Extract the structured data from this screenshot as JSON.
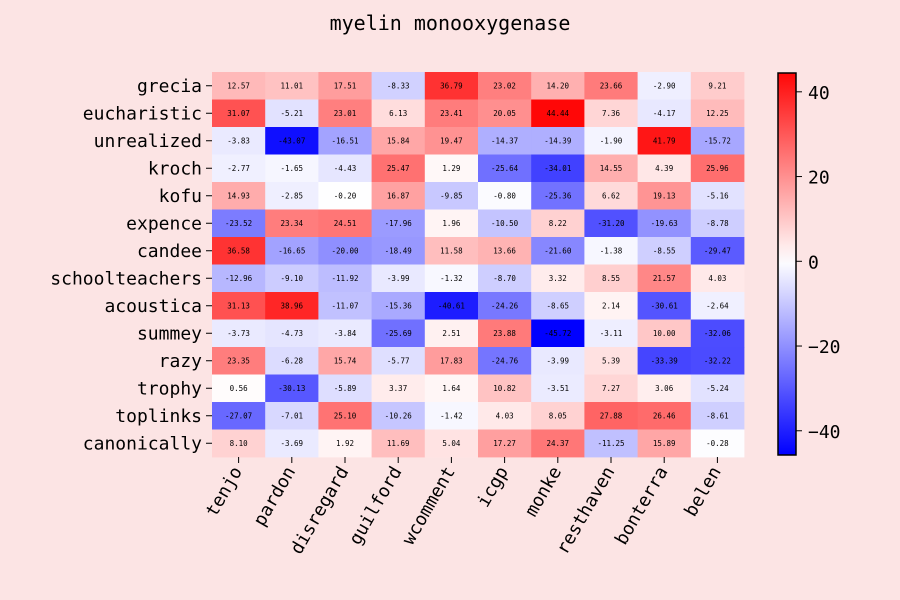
{
  "chart_data": {
    "type": "heatmap",
    "title": "myelin monooxygenase",
    "xlabel": "",
    "ylabel": "",
    "x_categories": [
      "tenjo",
      "pardon",
      "disregard",
      "guilford",
      "wcomment",
      "icgp",
      "monke",
      "resthaven",
      "bonterra",
      "belen"
    ],
    "y_categories": [
      "grecia",
      "eucharistic",
      "unrealized",
      "kroch",
      "kofu",
      "expence",
      "candee",
      "schoolteachers",
      "acoustica",
      "summey",
      "razy",
      "trophy",
      "toplinks",
      "canonically"
    ],
    "values": [
      [
        12.57,
        11.01,
        17.51,
        -8.33,
        36.79,
        23.02,
        14.2,
        23.66,
        -2.9,
        9.21
      ],
      [
        31.07,
        -5.21,
        23.01,
        6.13,
        23.41,
        20.05,
        44.44,
        7.36,
        -4.17,
        12.25
      ],
      [
        -3.83,
        -43.07,
        -16.51,
        15.84,
        19.47,
        -14.37,
        -14.39,
        -1.9,
        41.79,
        -15.72
      ],
      [
        -2.77,
        -1.65,
        -4.43,
        25.47,
        1.29,
        -25.64,
        -34.01,
        14.55,
        4.39,
        25.96
      ],
      [
        14.93,
        -2.85,
        -0.2,
        16.87,
        -9.85,
        -0.8,
        -25.36,
        6.62,
        19.13,
        -5.16
      ],
      [
        -23.52,
        23.34,
        24.51,
        -17.96,
        1.96,
        -10.5,
        8.22,
        -31.2,
        -19.63,
        -8.78
      ],
      [
        36.58,
        -16.65,
        -20.0,
        -18.49,
        11.58,
        13.66,
        -21.6,
        -1.38,
        -8.55,
        -29.47
      ],
      [
        -12.96,
        -9.1,
        -11.92,
        -3.99,
        -1.32,
        -8.7,
        3.32,
        8.55,
        21.57,
        4.03
      ],
      [
        31.13,
        38.96,
        -11.07,
        -15.36,
        -40.61,
        -24.26,
        -8.65,
        2.14,
        -30.61,
        -2.64
      ],
      [
        -3.73,
        -4.73,
        -3.84,
        -25.69,
        2.51,
        23.88,
        -45.72,
        -3.11,
        10.0,
        -32.06
      ],
      [
        23.35,
        -6.28,
        15.74,
        -5.77,
        17.83,
        -24.76,
        -3.99,
        5.39,
        -33.39,
        -32.22
      ],
      [
        0.56,
        -30.13,
        -5.89,
        3.37,
        1.64,
        10.82,
        -3.51,
        7.27,
        3.06,
        -5.24
      ],
      [
        -27.07,
        -7.01,
        25.1,
        -10.26,
        -1.42,
        4.03,
        8.05,
        27.88,
        26.46,
        -8.61
      ],
      [
        8.1,
        -3.69,
        1.92,
        11.69,
        5.04,
        17.27,
        24.37,
        -11.25,
        15.89,
        -0.28
      ]
    ],
    "colormap": "bwr",
    "colorbar": {
      "vmin": -45.72,
      "vmax": 44.44,
      "ticks": [
        40,
        20,
        0,
        -20,
        -40
      ],
      "tick_labels": [
        "40",
        "20",
        "0",
        "−20",
        "−40"
      ]
    },
    "colors": {
      "background": "#fce4e4",
      "low": "#0000ff",
      "mid": "#ffffff",
      "high": "#ff0000"
    },
    "grid": false
  }
}
